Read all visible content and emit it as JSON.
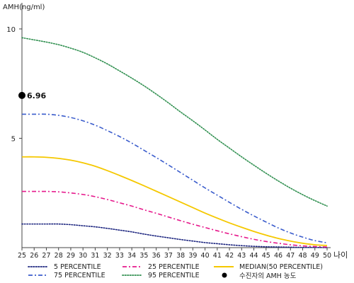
{
  "chart_data": {
    "type": "line",
    "ylabel": "AMH(ng/ml)",
    "xlabel": "나이",
    "x": [
      25,
      26,
      27,
      28,
      29,
      30,
      31,
      32,
      33,
      34,
      35,
      36,
      37,
      38,
      39,
      40,
      41,
      42,
      43,
      44,
      45,
      46,
      47,
      48,
      49,
      50
    ],
    "x_tick_labels": [
      "25",
      "26",
      "27",
      "28",
      "29",
      "30",
      "31",
      "32",
      "33",
      "34",
      "35",
      "36",
      "37",
      "38",
      "39",
      "40",
      "41",
      "42",
      "43",
      "44",
      "45",
      "46",
      "47",
      "48",
      "49",
      "50"
    ],
    "y_ticks": [
      5,
      10
    ],
    "y_tick_labels": [
      "5",
      "10"
    ],
    "ylim": [
      0,
      11
    ],
    "grid": false,
    "legend_position": "bottom",
    "series": [
      {
        "name": "5 PERCENTILE",
        "color": "#1a237e",
        "dash": "dotted",
        "values": [
          1.08,
          1.08,
          1.08,
          1.08,
          1.05,
          1.0,
          0.95,
          0.88,
          0.8,
          0.72,
          0.62,
          0.53,
          0.45,
          0.37,
          0.3,
          0.23,
          0.18,
          0.13,
          0.09,
          0.06,
          0.04,
          0.03,
          0.02,
          0.01,
          0.01,
          0.0
        ]
      },
      {
        "name": "25 PERCENTILE",
        "color": "#e6198c",
        "dash": "dash-dot",
        "values": [
          2.57,
          2.57,
          2.57,
          2.55,
          2.5,
          2.43,
          2.33,
          2.2,
          2.05,
          1.9,
          1.73,
          1.57,
          1.4,
          1.23,
          1.07,
          0.92,
          0.77,
          0.63,
          0.5,
          0.38,
          0.28,
          0.2,
          0.13,
          0.08,
          0.05,
          0.03
        ]
      },
      {
        "name": "MEDIAN(50 PERCENTILE)",
        "color": "#f5c800",
        "dash": "solid",
        "values": [
          4.15,
          4.15,
          4.13,
          4.08,
          4.0,
          3.88,
          3.72,
          3.52,
          3.3,
          3.07,
          2.83,
          2.58,
          2.33,
          2.08,
          1.83,
          1.58,
          1.35,
          1.13,
          0.93,
          0.74,
          0.57,
          0.42,
          0.3,
          0.2,
          0.13,
          0.1
        ]
      },
      {
        "name": "75 PERCENTILE",
        "color": "#3a5ccc",
        "dash": "dash-dot",
        "values": [
          6.1,
          6.1,
          6.1,
          6.05,
          5.95,
          5.8,
          5.6,
          5.35,
          5.08,
          4.78,
          4.45,
          4.12,
          3.78,
          3.43,
          3.08,
          2.73,
          2.4,
          2.07,
          1.75,
          1.45,
          1.17,
          0.9,
          0.67,
          0.48,
          0.32,
          0.22
        ]
      },
      {
        "name": "95 PERCENTILE",
        "color": "#2f8f4f",
        "dash": "dotted",
        "values": [
          9.6,
          9.5,
          9.4,
          9.28,
          9.12,
          8.93,
          8.68,
          8.4,
          8.08,
          7.75,
          7.4,
          7.02,
          6.62,
          6.2,
          5.8,
          5.38,
          4.95,
          4.55,
          4.15,
          3.77,
          3.4,
          3.05,
          2.72,
          2.42,
          2.15,
          1.9
        ]
      }
    ],
    "highlight_point": {
      "name": "수진자의 AMH 농도",
      "x": 25,
      "y": 6.96,
      "label": "6.96",
      "color": "#000000"
    },
    "legend": [
      {
        "label": "5 PERCENTILE",
        "color": "#1a237e",
        "dash": "dotted",
        "marker": "line"
      },
      {
        "label": "25 PERCENTILE",
        "color": "#e6198c",
        "dash": "dash-dot",
        "marker": "line"
      },
      {
        "label": "MEDIAN(50 PERCENTILE)",
        "color": "#f5c800",
        "dash": "solid",
        "marker": "line"
      },
      {
        "label": "75 PERCENTILE",
        "color": "#3a5ccc",
        "dash": "dash-dot",
        "marker": "line"
      },
      {
        "label": "95 PERCENTILE",
        "color": "#2f8f4f",
        "dash": "dotted",
        "marker": "line"
      },
      {
        "label": "수진자의 AMH 농도",
        "color": "#000000",
        "dash": "none",
        "marker": "dot"
      }
    ]
  }
}
